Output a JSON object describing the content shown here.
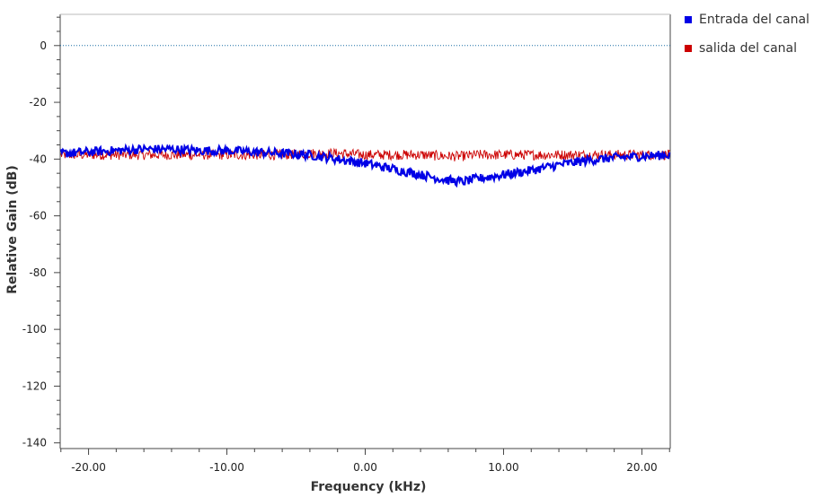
{
  "chart_data": {
    "type": "line",
    "xlabel": "Frequency (kHz)",
    "ylabel": "Relative Gain (dB)",
    "xlim": [
      -22.05,
      22.05
    ],
    "ylim": [
      -142,
      11
    ],
    "x_ticks": [
      -20,
      -10,
      0,
      10,
      20
    ],
    "x_tick_labels": [
      "-20.00",
      "-10.00",
      "0.00",
      "10.00",
      "20.00"
    ],
    "y_ticks": [
      0,
      -20,
      -40,
      -60,
      -80,
      -100,
      -120,
      -140
    ],
    "y_tick_labels": [
      "0",
      "-20",
      "-40",
      "-60",
      "-80",
      "-100",
      "-120",
      "-140"
    ],
    "reference_line": {
      "y": 0,
      "style": "dotted",
      "color": "#1a6fa3"
    },
    "grid": false,
    "legend_position": "top-right",
    "series": [
      {
        "name": "Entrada del canal",
        "color": "#0000e6",
        "x": [
          -22,
          -20,
          -18,
          -16,
          -14,
          -12,
          -10,
          -8,
          -6,
          -4,
          -2,
          0,
          2,
          4,
          6,
          7,
          8,
          10,
          12,
          14,
          16,
          18,
          20,
          22
        ],
        "values": [
          -38,
          -37.5,
          -37,
          -36.5,
          -36.5,
          -37,
          -37,
          -37.5,
          -38,
          -38.5,
          -40,
          -41.5,
          -43.5,
          -45.5,
          -47.5,
          -48,
          -47,
          -45.5,
          -44,
          -42,
          -40.5,
          -39.5,
          -39,
          -38.5
        ]
      },
      {
        "name": "salida del canal",
        "color": "#cc0000",
        "x": [
          -22,
          -20,
          -18,
          -16,
          -14,
          -12,
          -10,
          -8,
          -6,
          -4,
          -2,
          0,
          2,
          4,
          6,
          7,
          8,
          10,
          12,
          14,
          16,
          18,
          20,
          22
        ],
        "values": [
          -38.5,
          -38.5,
          -38.5,
          -38.5,
          -38.5,
          -38.5,
          -38.5,
          -38.5,
          -38.5,
          -38,
          -38,
          -38.5,
          -38.5,
          -38.5,
          -39,
          -39,
          -38.5,
          -38.5,
          -38.5,
          -38.5,
          -38.5,
          -38.5,
          -38.5,
          -38.5
        ]
      }
    ]
  }
}
